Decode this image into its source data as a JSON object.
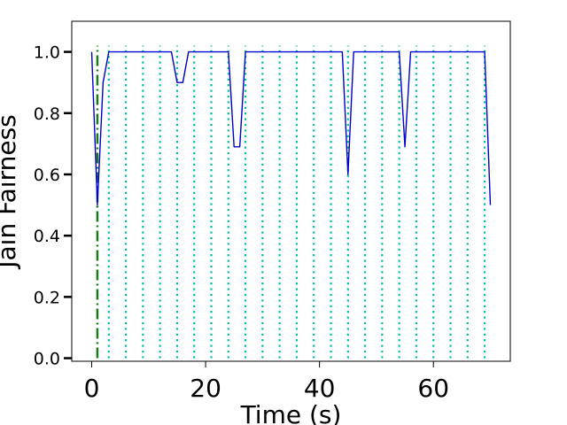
{
  "chart_data": {
    "type": "line",
    "xlabel": "Time (s)",
    "ylabel": "Jain Fairness",
    "xlim": [
      -3.5,
      73.5
    ],
    "ylim": [
      -0.01,
      1.1
    ],
    "x_ticks": [
      0,
      20,
      40,
      60
    ],
    "y_ticks": [
      0.0,
      0.2,
      0.4,
      0.6,
      0.8,
      1.0
    ],
    "x_tick_labels": [
      "0",
      "20",
      "40",
      "60"
    ],
    "y_tick_labels": [
      "0.0",
      "0.2",
      "0.4",
      "0.6",
      "0.8",
      "1.0"
    ],
    "grid": false,
    "series": [
      {
        "color": "#0000cc",
        "style": "solid",
        "x": [
          0,
          1,
          2,
          3,
          4,
          5,
          6,
          7,
          8,
          9,
          10,
          11,
          12,
          13,
          14,
          15,
          16,
          17,
          18,
          19,
          20,
          21,
          22,
          23,
          24,
          25,
          26,
          27,
          28,
          29,
          30,
          31,
          32,
          33,
          34,
          35,
          36,
          37,
          38,
          39,
          40,
          41,
          42,
          43,
          44,
          45,
          46,
          47,
          48,
          49,
          50,
          51,
          52,
          53,
          54,
          55,
          56,
          57,
          58,
          59,
          60,
          61,
          62,
          63,
          64,
          65,
          66,
          67,
          68,
          69,
          70
        ],
        "values": [
          1.0,
          0.5,
          0.9,
          1.0,
          1.0,
          1.0,
          1.0,
          1.0,
          1.0,
          1.0,
          1.0,
          1.0,
          1.0,
          1.0,
          1.0,
          0.9,
          0.9,
          1.0,
          1.0,
          1.0,
          1.0,
          1.0,
          1.0,
          1.0,
          1.0,
          0.69,
          0.69,
          1.0,
          1.0,
          1.0,
          1.0,
          1.0,
          1.0,
          1.0,
          1.0,
          1.0,
          1.0,
          1.0,
          1.0,
          1.0,
          1.0,
          1.0,
          1.0,
          1.0,
          1.0,
          0.6,
          1.0,
          1.0,
          1.0,
          1.0,
          1.0,
          1.0,
          1.0,
          1.0,
          1.0,
          0.69,
          1.0,
          1.0,
          1.0,
          1.0,
          1.0,
          1.0,
          1.0,
          1.0,
          1.0,
          1.0,
          1.0,
          1.0,
          1.0,
          1.0,
          0.5
        ]
      }
    ],
    "event_lines": {
      "color": "#00bfa0",
      "style": "dotted",
      "y_range": [
        0,
        1.02
      ],
      "x": [
        3,
        6,
        9,
        12,
        15,
        18,
        21,
        24,
        27,
        30,
        33,
        36,
        39,
        42,
        45,
        48,
        51,
        54,
        57,
        60,
        63,
        66,
        69
      ]
    },
    "start_line": {
      "x": 1,
      "color": "#1a7a1a",
      "style": "dashdot",
      "y_range": [
        0,
        1.02
      ]
    }
  }
}
